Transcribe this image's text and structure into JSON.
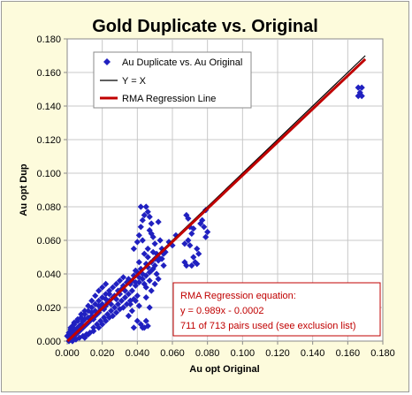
{
  "chart_data": {
    "type": "scatter",
    "title": "Gold Duplicate vs. Original",
    "xlabel": "Au opt Original",
    "ylabel": "Au opt Dup",
    "xlim": [
      0,
      0.18
    ],
    "ylim": [
      0,
      0.18
    ],
    "xticks": [
      "0.000",
      "0.020",
      "0.040",
      "0.060",
      "0.080",
      "0.100",
      "0.120",
      "0.140",
      "0.160",
      "0.180"
    ],
    "yticks": [
      "0.000",
      "0.020",
      "0.040",
      "0.060",
      "0.080",
      "0.100",
      "0.120",
      "0.140",
      "0.160",
      "0.180"
    ],
    "grid": true,
    "legend_position": "top-left",
    "legend": [
      "Au Duplicate vs. Au Original",
      "Y = X",
      "RMA Regression Line"
    ],
    "colors": {
      "points": "#2020c0",
      "yx": "#000000",
      "rma": "#c00000",
      "background": "#fdfbdc",
      "grid": "#c8c8c8"
    },
    "series": [
      {
        "name": "Au Duplicate vs. Au Original",
        "kind": "scatter",
        "points": [
          [
            0.001,
            0.0
          ],
          [
            0.002,
            0.001
          ],
          [
            0.001,
            0.002
          ],
          [
            0.003,
            0.002
          ],
          [
            0.002,
            0.004
          ],
          [
            0.004,
            0.003
          ],
          [
            0.003,
            0.005
          ],
          [
            0.005,
            0.004
          ],
          [
            0.005,
            0.006
          ],
          [
            0.006,
            0.005
          ],
          [
            0.004,
            0.007
          ],
          [
            0.007,
            0.006
          ],
          [
            0.006,
            0.008
          ],
          [
            0.008,
            0.007
          ],
          [
            0.007,
            0.009
          ],
          [
            0.009,
            0.008
          ],
          [
            0.008,
            0.01
          ],
          [
            0.01,
            0.009
          ],
          [
            0.009,
            0.012
          ],
          [
            0.011,
            0.01
          ],
          [
            0.01,
            0.013
          ],
          [
            0.012,
            0.011
          ],
          [
            0.012,
            0.014
          ],
          [
            0.013,
            0.012
          ],
          [
            0.014,
            0.015
          ],
          [
            0.015,
            0.013
          ],
          [
            0.014,
            0.017
          ],
          [
            0.016,
            0.015
          ],
          [
            0.017,
            0.016
          ],
          [
            0.016,
            0.018
          ],
          [
            0.018,
            0.017
          ],
          [
            0.019,
            0.019
          ],
          [
            0.018,
            0.021
          ],
          [
            0.02,
            0.02
          ],
          [
            0.021,
            0.019
          ],
          [
            0.02,
            0.022
          ],
          [
            0.022,
            0.021
          ],
          [
            0.023,
            0.023
          ],
          [
            0.022,
            0.025
          ],
          [
            0.024,
            0.024
          ],
          [
            0.025,
            0.022
          ],
          [
            0.026,
            0.026
          ],
          [
            0.024,
            0.028
          ],
          [
            0.027,
            0.027
          ],
          [
            0.028,
            0.025
          ],
          [
            0.029,
            0.03
          ],
          [
            0.03,
            0.028
          ],
          [
            0.031,
            0.031
          ],
          [
            0.032,
            0.033
          ],
          [
            0.033,
            0.03
          ],
          [
            0.034,
            0.035
          ],
          [
            0.035,
            0.037
          ],
          [
            0.036,
            0.034
          ],
          [
            0.037,
            0.036
          ],
          [
            0.038,
            0.039
          ],
          [
            0.039,
            0.035
          ],
          [
            0.04,
            0.041
          ],
          [
            0.041,
            0.038
          ],
          [
            0.042,
            0.043
          ],
          [
            0.043,
            0.04
          ],
          [
            0.045,
            0.046
          ],
          [
            0.046,
            0.044
          ],
          [
            0.048,
            0.047
          ],
          [
            0.05,
            0.049
          ],
          [
            0.052,
            0.05
          ],
          [
            0.054,
            0.055
          ],
          [
            0.056,
            0.053
          ],
          [
            0.058,
            0.059
          ],
          [
            0.06,
            0.057
          ],
          [
            0.062,
            0.063
          ],
          [
            0.01,
            0.002
          ],
          [
            0.012,
            0.004
          ],
          [
            0.015,
            0.006
          ],
          [
            0.018,
            0.008
          ],
          [
            0.02,
            0.01
          ],
          [
            0.022,
            0.012
          ],
          [
            0.024,
            0.014
          ],
          [
            0.026,
            0.015
          ],
          [
            0.028,
            0.017
          ],
          [
            0.03,
            0.019
          ],
          [
            0.032,
            0.02
          ],
          [
            0.034,
            0.022
          ],
          [
            0.036,
            0.024
          ],
          [
            0.038,
            0.025
          ],
          [
            0.04,
            0.027
          ],
          [
            0.002,
            0.008
          ],
          [
            0.004,
            0.011
          ],
          [
            0.006,
            0.013
          ],
          [
            0.008,
            0.016
          ],
          [
            0.01,
            0.018
          ],
          [
            0.012,
            0.021
          ],
          [
            0.014,
            0.024
          ],
          [
            0.016,
            0.027
          ],
          [
            0.018,
            0.03
          ],
          [
            0.02,
            0.032
          ],
          [
            0.022,
            0.034
          ],
          [
            0.003,
            0.0
          ],
          [
            0.005,
            0.001
          ],
          [
            0.007,
            0.002
          ],
          [
            0.009,
            0.003
          ],
          [
            0.011,
            0.004
          ],
          [
            0.013,
            0.005
          ],
          [
            0.015,
            0.008
          ],
          [
            0.017,
            0.01
          ],
          [
            0.019,
            0.012
          ],
          [
            0.021,
            0.014
          ],
          [
            0.023,
            0.016
          ],
          [
            0.025,
            0.018
          ],
          [
            0.027,
            0.02
          ],
          [
            0.029,
            0.022
          ],
          [
            0.031,
            0.024
          ],
          [
            0.033,
            0.026
          ],
          [
            0.035,
            0.028
          ],
          [
            0.037,
            0.03
          ],
          [
            0.039,
            0.033
          ],
          [
            0.041,
            0.035
          ],
          [
            0.043,
            0.037
          ],
          [
            0.045,
            0.039
          ],
          [
            0.047,
            0.041
          ],
          [
            0.049,
            0.043
          ],
          [
            0.0,
            0.003
          ],
          [
            0.001,
            0.005
          ],
          [
            0.002,
            0.007
          ],
          [
            0.003,
            0.009
          ],
          [
            0.004,
            0.01
          ],
          [
            0.006,
            0.012
          ],
          [
            0.008,
            0.014
          ],
          [
            0.01,
            0.016
          ],
          [
            0.012,
            0.018
          ],
          [
            0.014,
            0.02
          ],
          [
            0.016,
            0.022
          ],
          [
            0.018,
            0.024
          ],
          [
            0.02,
            0.026
          ],
          [
            0.022,
            0.028
          ],
          [
            0.024,
            0.03
          ],
          [
            0.026,
            0.032
          ],
          [
            0.028,
            0.034
          ],
          [
            0.03,
            0.036
          ],
          [
            0.032,
            0.038
          ],
          [
            0.035,
            0.015
          ],
          [
            0.037,
            0.018
          ],
          [
            0.04,
            0.012
          ],
          [
            0.042,
            0.01
          ],
          [
            0.044,
            0.008
          ],
          [
            0.046,
            0.009
          ],
          [
            0.043,
            0.008
          ],
          [
            0.045,
            0.012
          ],
          [
            0.038,
            0.008
          ],
          [
            0.047,
            0.02
          ],
          [
            0.036,
            0.022
          ],
          [
            0.039,
            0.024
          ],
          [
            0.041,
            0.021
          ],
          [
            0.045,
            0.026
          ],
          [
            0.038,
            0.055
          ],
          [
            0.04,
            0.059
          ],
          [
            0.041,
            0.063
          ],
          [
            0.042,
            0.068
          ],
          [
            0.043,
            0.072
          ],
          [
            0.044,
            0.075
          ],
          [
            0.042,
            0.08
          ],
          [
            0.045,
            0.08
          ],
          [
            0.046,
            0.077
          ],
          [
            0.047,
            0.066
          ],
          [
            0.048,
            0.07
          ],
          [
            0.049,
            0.062
          ],
          [
            0.047,
            0.074
          ],
          [
            0.046,
            0.055
          ],
          [
            0.05,
            0.058
          ],
          [
            0.051,
            0.052
          ],
          [
            0.044,
            0.052
          ],
          [
            0.043,
            0.06
          ],
          [
            0.048,
            0.064
          ],
          [
            0.052,
            0.071
          ],
          [
            0.049,
            0.053
          ],
          [
            0.053,
            0.06
          ],
          [
            0.052,
            0.048
          ],
          [
            0.054,
            0.049
          ],
          [
            0.055,
            0.045
          ],
          [
            0.05,
            0.045
          ],
          [
            0.046,
            0.05
          ],
          [
            0.041,
            0.047
          ],
          [
            0.039,
            0.042
          ],
          [
            0.048,
            0.042
          ],
          [
            0.051,
            0.04
          ],
          [
            0.055,
            0.052
          ],
          [
            0.045,
            0.032
          ],
          [
            0.047,
            0.036
          ],
          [
            0.05,
            0.034
          ],
          [
            0.052,
            0.037
          ],
          [
            0.044,
            0.034
          ],
          [
            0.048,
            0.03
          ],
          [
            0.068,
            0.075
          ],
          [
            0.069,
            0.073
          ],
          [
            0.07,
            0.068
          ],
          [
            0.071,
            0.064
          ],
          [
            0.069,
            0.06
          ],
          [
            0.07,
            0.057
          ],
          [
            0.072,
            0.067
          ],
          [
            0.074,
            0.055
          ],
          [
            0.076,
            0.07
          ],
          [
            0.078,
            0.068
          ],
          [
            0.079,
            0.062
          ],
          [
            0.08,
            0.065
          ],
          [
            0.077,
            0.072
          ],
          [
            0.075,
            0.052
          ],
          [
            0.073,
            0.047
          ],
          [
            0.071,
            0.045
          ],
          [
            0.068,
            0.045
          ],
          [
            0.074,
            0.046
          ],
          [
            0.072,
            0.05
          ],
          [
            0.067,
            0.058
          ],
          [
            0.079,
            0.078
          ],
          [
            0.166,
            0.151
          ],
          [
            0.168,
            0.151
          ],
          [
            0.167,
            0.148
          ],
          [
            0.166,
            0.146
          ],
          [
            0.168,
            0.146
          ],
          [
            0.067,
            0.047
          ]
        ]
      },
      {
        "name": "Y = X",
        "kind": "line",
        "points": [
          [
            0,
            0
          ],
          [
            0.17,
            0.17
          ]
        ]
      },
      {
        "name": "RMA Regression Line",
        "kind": "line",
        "slope": 0.989,
        "intercept": -0.0002,
        "x_range": [
          0,
          0.17
        ]
      }
    ],
    "annotation": [
      "RMA Regression equation:",
      "y = 0.989x - 0.0002",
      "711 of 713 pairs used (see exclusion list)"
    ]
  }
}
